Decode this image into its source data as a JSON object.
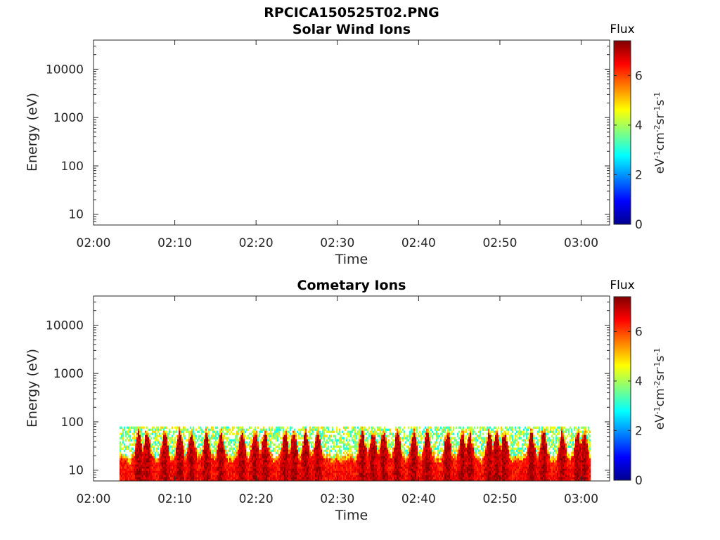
{
  "figure_title": "RPCICA150525T02.PNG",
  "colors": {
    "colormap": [
      "#00008f",
      "#0000ff",
      "#0080ff",
      "#00ffff",
      "#80ff80",
      "#ffff00",
      "#ff8000",
      "#ff0000",
      "#800000"
    ]
  },
  "chart_data": [
    {
      "type": "heatmap",
      "title": "Solar Wind Ions",
      "xlabel": "Time",
      "ylabel": "Energy (eV)",
      "x_ticks": [
        "02:00",
        "02:10",
        "02:20",
        "02:30",
        "02:40",
        "02:50",
        "03:00"
      ],
      "x_range_minutes": [
        0,
        63.5
      ],
      "y_scale": "log",
      "y_ticks": [
        10,
        100,
        1000,
        10000
      ],
      "y_range": [
        6,
        40000
      ],
      "colorbar": {
        "title": "Flux",
        "label": "eV-1cm-2sr-1s-1",
        "ticks": [
          0,
          2,
          4,
          6
        ],
        "range": [
          0,
          7.4
        ]
      },
      "data": []
    },
    {
      "type": "heatmap",
      "title": "Cometary Ions",
      "xlabel": "Time",
      "ylabel": "Energy (eV)",
      "x_ticks": [
        "02:00",
        "02:10",
        "02:20",
        "02:30",
        "02:40",
        "02:50",
        "03:00"
      ],
      "x_range_minutes": [
        0,
        63.5
      ],
      "y_scale": "log",
      "y_ticks": [
        10,
        100,
        1000,
        10000
      ],
      "y_range": [
        6,
        40000
      ],
      "colorbar": {
        "title": "Flux",
        "label": "eV-1cm-2sr-1s-1",
        "ticks": [
          0,
          2,
          4,
          6
        ],
        "range": [
          0,
          7.4
        ]
      },
      "data": {
        "time_start_min": 3.2,
        "time_end_min": 61.0,
        "energy_min_eV": 6,
        "energy_max_eV": 80,
        "flux_typical": 6.5,
        "flux_max": 7.4,
        "bright_streak_times_min": [
          5.5,
          6.5,
          8.7,
          10.5,
          12.0,
          13.8,
          15.6,
          18.2,
          19.8,
          21.0,
          23.5,
          24.6,
          26.0,
          27.5,
          33.0,
          34.3,
          35.6,
          37.3,
          39.3,
          41.0,
          43.5,
          45.3,
          46.2,
          48.6,
          49.5,
          50.5,
          53.8,
          55.3,
          57.6,
          59.5,
          60.3
        ]
      }
    }
  ]
}
